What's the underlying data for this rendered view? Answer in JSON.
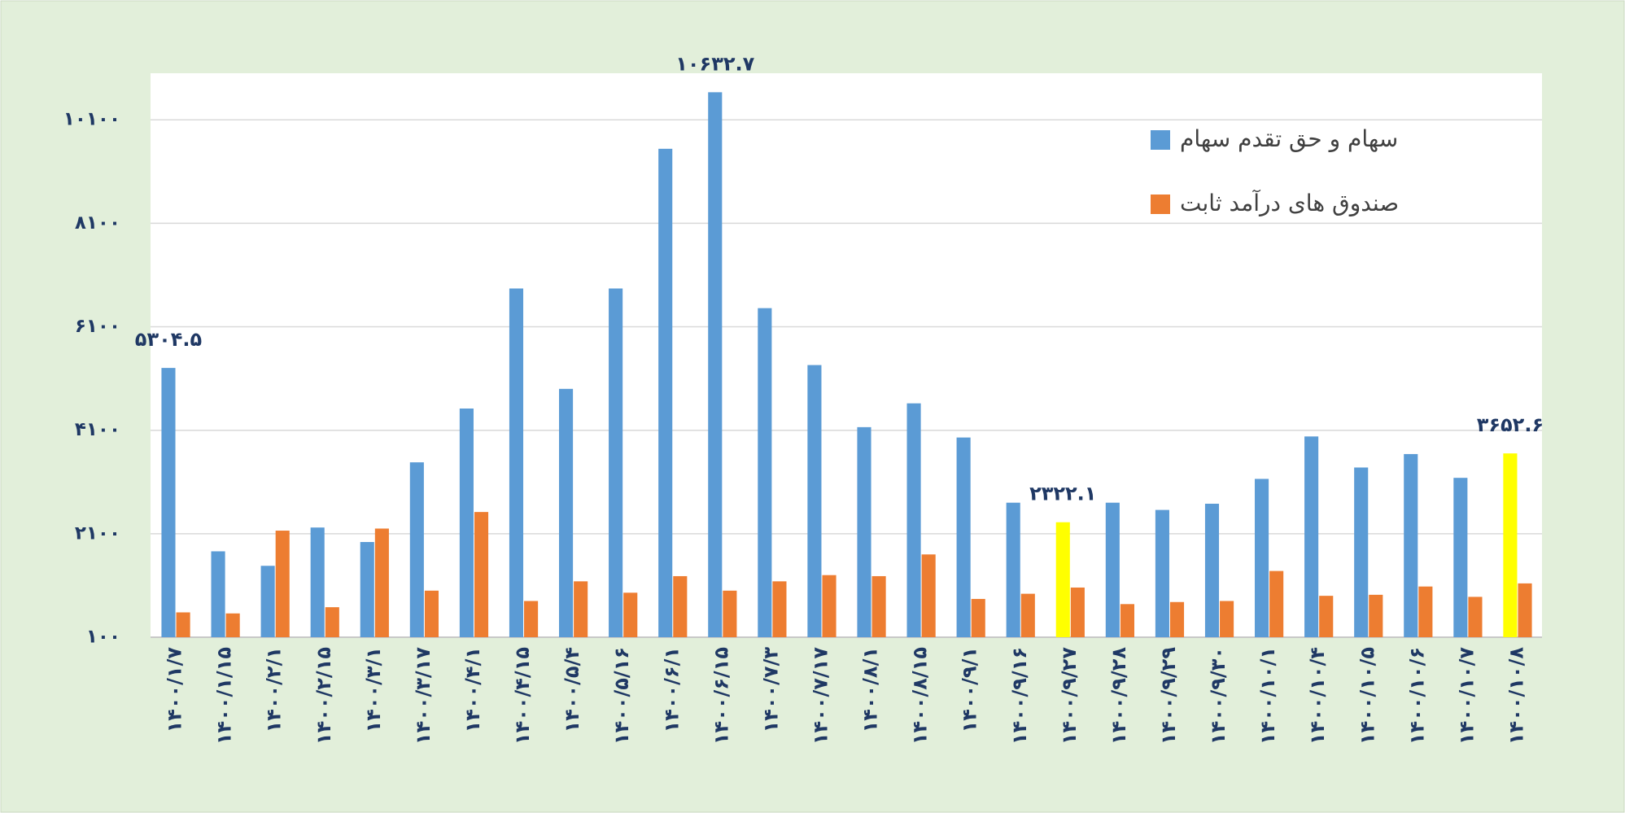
{
  "chart_data": {
    "type": "bar",
    "categories": [
      "۱۴۰۰/۱/۷",
      "۱۴۰۰/۱/۱۵",
      "۱۴۰۰/۲/۱",
      "۱۴۰۰/۲/۱۵",
      "۱۴۰۰/۳/۱",
      "۱۴۰۰/۳/۱۷",
      "۱۴۰۰/۴/۱",
      "۱۴۰۰/۴/۱۵",
      "۱۴۰۰/۵/۴",
      "۱۴۰۰/۵/۱۶",
      "۱۴۰۰/۶/۱",
      "۱۴۰۰/۶/۱۵",
      "۱۴۰۰/۷/۳",
      "۱۴۰۰/۷/۱۷",
      "۱۴۰۰/۸/۱",
      "۱۴۰۰/۸/۱۵",
      "۱۴۰۰/۹/۱",
      "۱۴۰۰/۹/۱۶",
      "۱۴۰۰/۹/۲۷",
      "۱۴۰۰/۹/۲۸",
      "۱۴۰۰/۹/۲۹",
      "۱۴۰۰/۹/۳۰",
      "۱۴۰۰/۱۰/۱",
      "۱۴۰۰/۱۰/۴",
      "۱۴۰۰/۱۰/۵",
      "۱۴۰۰/۱۰/۶",
      "۱۴۰۰/۱۰/۷",
      "۱۴۰۰/۱۰/۸"
    ],
    "series": [
      {
        "name": "سهام و حق تقدم سهام",
        "color": "#5b9bd5",
        "colors": [
          "#5b9bd5",
          "#5b9bd5",
          "#5b9bd5",
          "#5b9bd5",
          "#5b9bd5",
          "#5b9bd5",
          "#5b9bd5",
          "#5b9bd5",
          "#5b9bd5",
          "#5b9bd5",
          "#5b9bd5",
          "#5b9bd5",
          "#5b9bd5",
          "#5b9bd5",
          "#5b9bd5",
          "#5b9bd5",
          "#5b9bd5",
          "#5b9bd5",
          "#ffff00",
          "#5b9bd5",
          "#5b9bd5",
          "#5b9bd5",
          "#5b9bd5",
          "#5b9bd5",
          "#5b9bd5",
          "#5b9bd5",
          "#5b9bd5",
          "#ffff00"
        ],
        "values": [
          5304.5,
          1760,
          1480,
          2220,
          1940,
          3480,
          4520,
          6840,
          4900,
          6840,
          9540,
          10632.7,
          6460,
          5360,
          4160,
          4620,
          3960,
          2700,
          2322.1,
          2700,
          2560,
          2680,
          3160,
          3980,
          3380,
          3640,
          3180,
          3652.6
        ],
        "value_labels": [
          "۵۳۰۴.۵",
          null,
          null,
          null,
          null,
          null,
          null,
          null,
          null,
          null,
          null,
          "۱۰۶۳۲.۷",
          null,
          null,
          null,
          null,
          null,
          null,
          "۲۳۲۲.۱",
          null,
          null,
          null,
          null,
          null,
          null,
          null,
          null,
          "۳۶۵۲.۶"
        ]
      },
      {
        "name": "صندوق های درآمد ثابت",
        "color": "#ed7d31",
        "values": [
          580,
          560,
          2160,
          680,
          2200,
          1000,
          2520,
          800,
          1180,
          960,
          1280,
          1000,
          1180,
          1300,
          1280,
          1700,
          840,
          940,
          1060,
          740,
          780,
          800,
          1380,
          900,
          920,
          1080,
          880,
          1140
        ]
      }
    ],
    "ylim": [
      100,
      11000
    ],
    "yticks": [
      {
        "value": 100,
        "label": "۱۰۰"
      },
      {
        "value": 2100,
        "label": "۲۱۰۰"
      },
      {
        "value": 4100,
        "label": "۴۱۰۰"
      },
      {
        "value": 6100,
        "label": "۶۱۰۰"
      },
      {
        "value": 8100,
        "label": "۸۱۰۰"
      },
      {
        "value": 10100,
        "label": "۱۰۱۰۰"
      }
    ],
    "grid": true,
    "legend": "top-right"
  }
}
